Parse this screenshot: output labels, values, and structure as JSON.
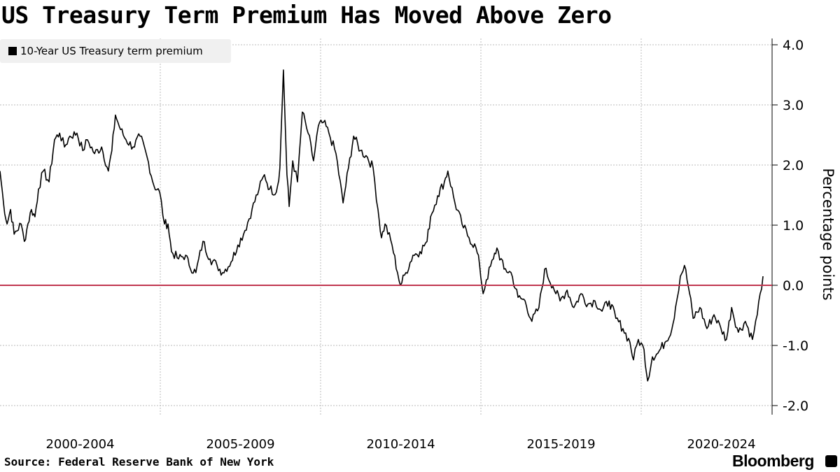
{
  "chart_data": {
    "type": "line",
    "title": "US Treasury Term Premium Has Moved Above Zero",
    "legend": [
      "10-Year US Treasury term premium"
    ],
    "legend_placement": "top-left",
    "ylabel": "Percentage points",
    "xlabel": "",
    "ylim": [
      -2.0,
      4.0
    ],
    "xlim": [
      2000.0,
      2024.8
    ],
    "y_ticks": [
      "4.0",
      "3.0",
      "2.0",
      "1.0",
      "0.0",
      "-1.0",
      "-2.0"
    ],
    "y_tick_values": [
      4,
      3,
      2,
      1,
      0,
      -1,
      -2
    ],
    "x_tick_labels": [
      "2000-2004",
      "2005-2009",
      "2010-2014",
      "2015-2019",
      "2020-2024"
    ],
    "x_tick_boundaries": [
      2005,
      2010,
      2015,
      2020
    ],
    "reference_line": {
      "value": 0,
      "color": "#c0364f"
    },
    "grid": true,
    "series": [
      {
        "name": "10-Year US Treasury term premium",
        "color": "#000000",
        "x": [
          2000.0,
          2000.11,
          2000.22,
          2000.33,
          2000.44,
          2000.66,
          2000.76,
          2000.87,
          2000.98,
          2001.09,
          2001.2,
          2001.35,
          2001.53,
          2001.7,
          2001.86,
          2002.01,
          2002.18,
          2002.4,
          2002.58,
          2002.73,
          2002.95,
          2003.17,
          2003.38,
          2003.49,
          2003.6,
          2003.76,
          2003.93,
          2004.15,
          2004.37,
          2004.59,
          2004.8,
          2004.98,
          2005.13,
          2005.24,
          2005.35,
          2005.57,
          2005.79,
          2005.9,
          2006.11,
          2006.33,
          2006.55,
          2006.77,
          2006.94,
          2007.21,
          2007.42,
          2007.64,
          2007.86,
          2008.08,
          2008.25,
          2008.41,
          2008.62,
          2008.73,
          2008.84,
          2008.95,
          2009.02,
          2009.13,
          2009.28,
          2009.43,
          2009.61,
          2009.78,
          2009.93,
          2010.09,
          2010.26,
          2010.48,
          2010.7,
          2010.87,
          2011.03,
          2011.24,
          2011.46,
          2011.64,
          2011.79,
          2011.9,
          2012.01,
          2012.23,
          2012.4,
          2012.49,
          2012.66,
          2012.88,
          2013.1,
          2013.32,
          2013.43,
          2013.65,
          2013.86,
          2013.97,
          2014.19,
          2014.41,
          2014.63,
          2014.85,
          2014.96,
          2015.07,
          2015.17,
          2015.39,
          2015.5,
          2015.72,
          2015.94,
          2016.16,
          2016.38,
          2016.59,
          2016.81,
          2016.99,
          2017.25,
          2017.47,
          2017.69,
          2017.9,
          2018.12,
          2018.34,
          2018.56,
          2018.78,
          2019.0,
          2019.21,
          2019.43,
          2019.65,
          2019.76,
          2019.91,
          2020.09,
          2020.2,
          2020.35,
          2020.52,
          2020.74,
          2020.96,
          2021.07,
          2021.22,
          2021.35,
          2021.51,
          2021.62,
          2021.83,
          2022.05,
          2022.27,
          2022.49,
          2022.66,
          2022.82,
          2023.03,
          2023.25,
          2023.47,
          2023.62,
          2023.71,
          2023.8
        ],
        "y": [
          1.9,
          1.37,
          1.02,
          1.26,
          0.85,
          1.02,
          0.73,
          1.02,
          1.26,
          1.14,
          1.6,
          1.9,
          1.72,
          2.42,
          2.53,
          2.3,
          2.48,
          2.53,
          2.24,
          2.42,
          2.19,
          2.3,
          1.9,
          2.24,
          2.83,
          2.59,
          2.42,
          2.3,
          2.48,
          2.13,
          1.66,
          1.55,
          1.02,
          1.02,
          0.56,
          0.44,
          0.5,
          0.33,
          0.21,
          0.73,
          0.44,
          0.33,
          0.21,
          0.39,
          0.67,
          0.91,
          1.26,
          1.6,
          1.84,
          1.6,
          1.55,
          1.95,
          3.58,
          1.84,
          1.31,
          2.07,
          1.72,
          2.88,
          2.53,
          2.07,
          2.65,
          2.71,
          2.53,
          2.19,
          1.37,
          1.95,
          2.48,
          2.24,
          2.13,
          1.95,
          1.26,
          0.79,
          1.02,
          0.67,
          0.21,
          0.0,
          0.21,
          0.5,
          0.56,
          0.73,
          1.14,
          1.49,
          1.72,
          1.9,
          1.37,
          1.02,
          0.79,
          0.62,
          0.33,
          -0.14,
          0.09,
          0.44,
          0.62,
          0.27,
          0.21,
          -0.2,
          -0.26,
          -0.6,
          -0.37,
          0.27,
          -0.02,
          -0.26,
          -0.08,
          -0.37,
          -0.14,
          -0.31,
          -0.26,
          -0.43,
          -0.26,
          -0.55,
          -0.72,
          -0.95,
          -1.24,
          -0.9,
          -1.07,
          -1.59,
          -1.19,
          -1.13,
          -0.95,
          -0.72,
          -0.37,
          0.15,
          0.33,
          -0.14,
          -0.55,
          -0.37,
          -0.72,
          -0.49,
          -0.72,
          -0.9,
          -0.37,
          -0.78,
          -0.6,
          -0.9,
          -0.49,
          -0.14,
          0.15
        ]
      }
    ]
  },
  "footer": {
    "source": "Source: Federal Reserve Bank of New York",
    "brand": "Bloomberg"
  }
}
